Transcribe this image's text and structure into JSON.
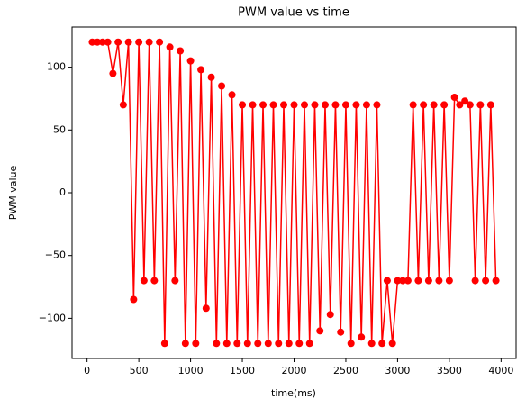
{
  "chart_data": {
    "type": "line",
    "title": "PWM value vs time",
    "xlabel": "time(ms)",
    "ylabel": "PWM value",
    "x": [
      50,
      100,
      150,
      200,
      250,
      300,
      350,
      400,
      450,
      500,
      550,
      600,
      650,
      700,
      750,
      800,
      850,
      900,
      950,
      1000,
      1050,
      1100,
      1150,
      1200,
      1250,
      1300,
      1350,
      1400,
      1450,
      1500,
      1550,
      1600,
      1650,
      1700,
      1750,
      1800,
      1850,
      1900,
      1950,
      2000,
      2050,
      2100,
      2150,
      2200,
      2250,
      2300,
      2350,
      2400,
      2450,
      2500,
      2550,
      2600,
      2650,
      2700,
      2750,
      2800,
      2850,
      2900,
      2950,
      3000,
      3050,
      3100,
      3150,
      3200,
      3250,
      3300,
      3350,
      3400,
      3450,
      3500,
      3550,
      3600,
      3650,
      3700,
      3750,
      3800,
      3850,
      3900,
      3950
    ],
    "series": [
      {
        "name": "PWM value",
        "color": "#ff0000",
        "values": [
          120,
          120,
          120,
          120,
          95,
          120,
          70,
          120,
          -85,
          120,
          -70,
          120,
          -70,
          120,
          -120,
          116,
          -70,
          113,
          -120,
          105,
          -120,
          98,
          -92,
          92,
          -120,
          85,
          -120,
          78,
          -120,
          70,
          -120,
          70,
          -120,
          70,
          -120,
          70,
          -120,
          70,
          -120,
          70,
          -120,
          70,
          -120,
          70,
          -110,
          70,
          -97,
          70,
          -111,
          70,
          -120,
          70,
          -115,
          70,
          -120,
          70,
          -120,
          -70,
          -120,
          -70,
          -70,
          -70,
          70,
          -70,
          70,
          -70,
          70,
          -70,
          70,
          -70,
          76,
          70,
          73,
          70,
          -70,
          70,
          -70,
          70,
          -70
        ]
      }
    ],
    "xlim": [
      -145,
      4145
    ],
    "ylim": [
      -132,
      132
    ],
    "xticks": [
      0,
      500,
      1000,
      1500,
      2000,
      2500,
      3000,
      3500,
      4000
    ],
    "yticks": [
      {
        "value": -100,
        "label": "−100"
      },
      {
        "value": -50,
        "label": "−50"
      },
      0,
      50,
      100
    ]
  }
}
